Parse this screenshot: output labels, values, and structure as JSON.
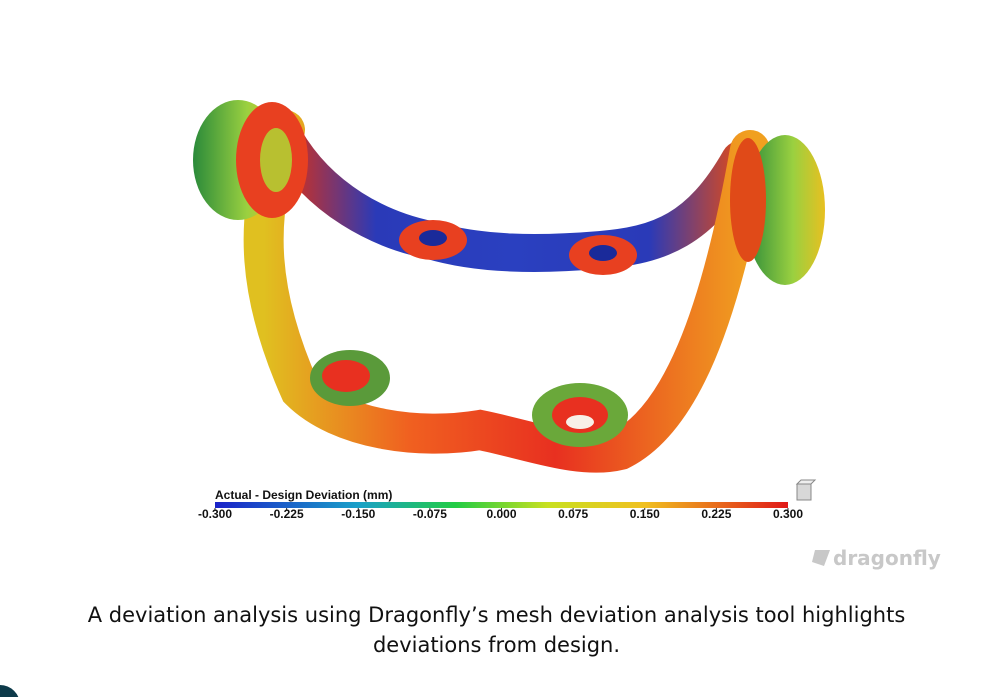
{
  "figure": {
    "colorbar": {
      "title": "Actual - Design Deviation (mm)",
      "ticks": [
        {
          "value": -0.3,
          "label": "-0.300"
        },
        {
          "value": -0.225,
          "label": "-0.225"
        },
        {
          "value": -0.15,
          "label": "-0.150"
        },
        {
          "value": -0.075,
          "label": "-0.075"
        },
        {
          "value": 0,
          "label": "0.000"
        },
        {
          "value": 0.075,
          "label": "0.075"
        },
        {
          "value": 0.15,
          "label": "0.150"
        },
        {
          "value": 0.225,
          "label": "0.225"
        },
        {
          "value": 0.3,
          "label": "0.300"
        }
      ]
    },
    "watermark": "dragonfly",
    "caption": "A deviation analysis using Dragonfly’s mesh deviation analysis tool highlights deviations from design."
  }
}
